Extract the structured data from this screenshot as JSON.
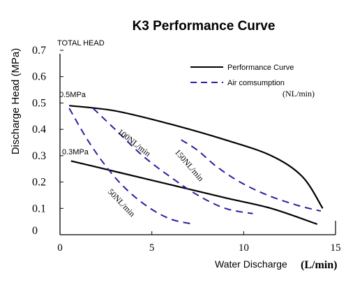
{
  "chart_data": {
    "type": "line",
    "title": "K3 Performance Curve",
    "ylabel": "Discharge Head (MPa)",
    "y_header": "TOTAL HEAD",
    "xlabel_main": "Water Discharge",
    "xlabel_unit": "(L/min)",
    "xlim": [
      0,
      15
    ],
    "ylim": [
      0,
      0.7
    ],
    "x_ticks": [
      "0",
      "5",
      "10",
      "15"
    ],
    "y_ticks": [
      "0",
      "0.1",
      "0.2",
      "0.3",
      "0.4",
      "0.5",
      "0.6",
      "0.7"
    ],
    "legend": {
      "position": "top-right",
      "performance_label": "Performance Curve",
      "air_label": "Air comsumption",
      "air_unit": "(NL/min)"
    },
    "series": [
      {
        "name": "0.5MPa",
        "kind": "performance",
        "color": "#000000",
        "points": [
          [
            0.5,
            0.49
          ],
          [
            3,
            0.47
          ],
          [
            6,
            0.42
          ],
          [
            9,
            0.36
          ],
          [
            11.5,
            0.3
          ],
          [
            13.2,
            0.22
          ],
          [
            14.3,
            0.1
          ]
        ]
      },
      {
        "name": "0.3MPa",
        "kind": "performance",
        "color": "#000000",
        "points": [
          [
            0.6,
            0.28
          ],
          [
            3,
            0.24
          ],
          [
            6,
            0.19
          ],
          [
            9,
            0.14
          ],
          [
            11.5,
            0.1
          ],
          [
            14,
            0.04
          ]
        ]
      },
      {
        "name": "50NL/min",
        "kind": "air",
        "color": "#2d1f9e",
        "points": [
          [
            0.5,
            0.48
          ],
          [
            1.5,
            0.36
          ],
          [
            2.5,
            0.26
          ],
          [
            3.5,
            0.18
          ],
          [
            4.7,
            0.11
          ],
          [
            6,
            0.06
          ],
          [
            7.3,
            0.04
          ]
        ]
      },
      {
        "name": "100NL/min",
        "kind": "air",
        "color": "#2d1f9e",
        "points": [
          [
            1.8,
            0.48
          ],
          [
            3,
            0.4
          ],
          [
            4.5,
            0.3
          ],
          [
            6,
            0.22
          ],
          [
            7.5,
            0.15
          ],
          [
            9,
            0.1
          ],
          [
            10.5,
            0.08
          ]
        ]
      },
      {
        "name": "150NL/min",
        "kind": "air",
        "color": "#2d1f9e",
        "points": [
          [
            6.6,
            0.36
          ],
          [
            7.5,
            0.32
          ],
          [
            8.5,
            0.26
          ],
          [
            9.8,
            0.2
          ],
          [
            11.3,
            0.15
          ],
          [
            13,
            0.11
          ],
          [
            14.2,
            0.09
          ]
        ]
      }
    ],
    "curve_labels": [
      {
        "text": "0.5MPa",
        "font": "sans"
      },
      {
        "text": "0.3MPa",
        "font": "sans"
      },
      {
        "text": "100NL/min",
        "font": "serif"
      },
      {
        "text": "150NL/min",
        "font": "serif"
      },
      {
        "text": "50NL/min",
        "font": "serif"
      }
    ],
    "grid": false
  }
}
